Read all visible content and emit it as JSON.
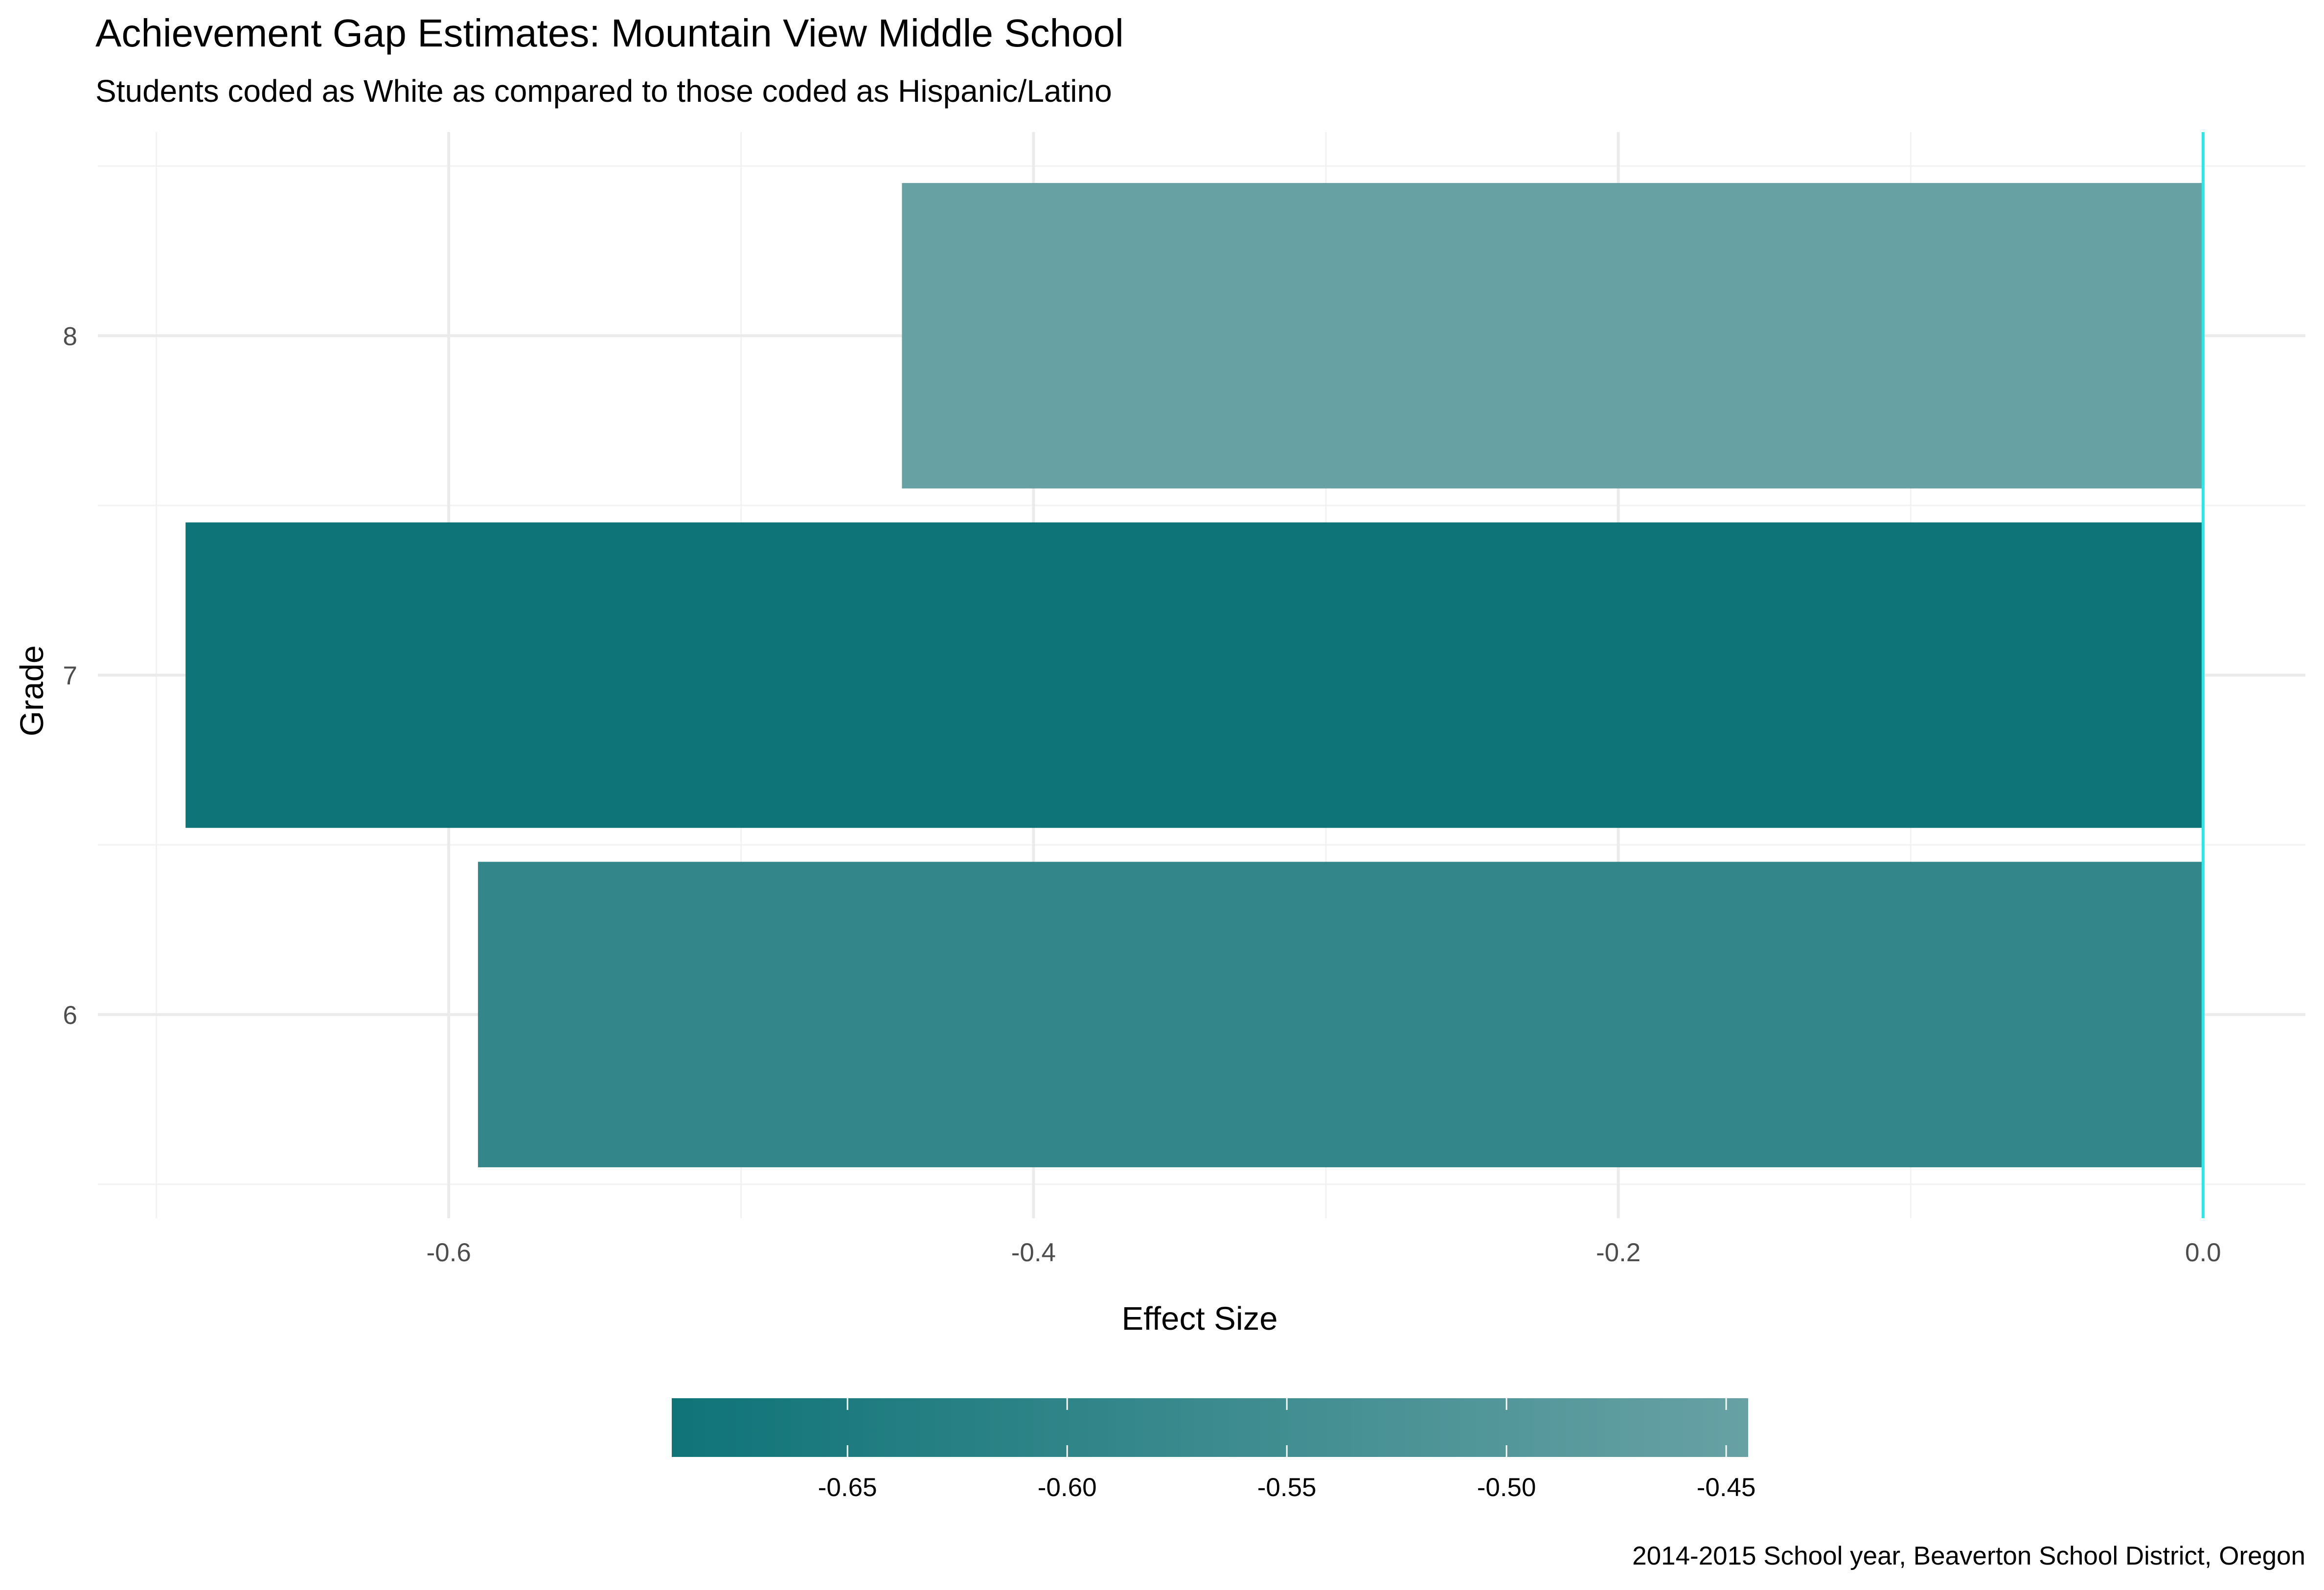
{
  "title": "Achievement Gap Estimates: Mountain View Middle School",
  "subtitle": "Students coded as White as compared to those coded as Hispanic/Latino",
  "caption": "2014-2015 School year, Beaverton School District, Oregon",
  "colors": {
    "low": "#0f7478",
    "high": "#67a1a4",
    "zero_line": "#2ee6e6",
    "grid_major": "#ebebeb",
    "grid_minor": "#f2f2f2"
  },
  "chart_data": {
    "type": "bar",
    "orientation": "horizontal",
    "xlabel": "Effect Size",
    "ylabel": "Grade",
    "categories": [
      "6",
      "7",
      "8"
    ],
    "values": [
      -0.59,
      -0.69,
      -0.445
    ],
    "xlim": [
      -0.72,
      0.035
    ],
    "x_ticks": [
      -0.6,
      -0.4,
      -0.2,
      0.0
    ],
    "x_tick_labels": [
      "-0.6",
      "-0.4",
      "-0.2",
      "0.0"
    ],
    "grid": true,
    "reference_line": 0,
    "legend": {
      "position": "bottom",
      "type": "colorbar",
      "range": [
        -0.69,
        -0.445
      ],
      "ticks": [
        -0.65,
        -0.6,
        -0.55,
        -0.5,
        -0.45
      ],
      "tick_labels": [
        "-0.65",
        "-0.60",
        "-0.55",
        "-0.50",
        "-0.45"
      ]
    }
  }
}
